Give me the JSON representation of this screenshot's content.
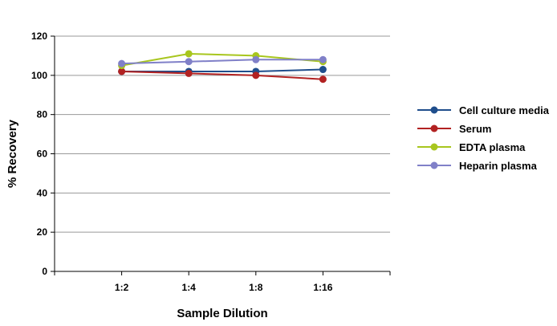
{
  "chart_data": {
    "type": "line",
    "title": "",
    "xlabel": "Sample Dilution",
    "ylabel": "% Recovery",
    "categories": [
      "1:2",
      "1:4",
      "1:8",
      "1:16"
    ],
    "ylim": [
      0,
      120
    ],
    "yticks": [
      0,
      20,
      40,
      60,
      80,
      100,
      120
    ],
    "grid": true,
    "legend_position": "right",
    "series": [
      {
        "name": "Cell culture media",
        "color": "#1f4e8c",
        "values": [
          102,
          102,
          102,
          103
        ]
      },
      {
        "name": "Serum",
        "color": "#b22222",
        "values": [
          102,
          101,
          100,
          98
        ]
      },
      {
        "name": "EDTA plasma",
        "color": "#a8c61e",
        "values": [
          105,
          111,
          110,
          107
        ]
      },
      {
        "name": "Heparin plasma",
        "color": "#8080c8",
        "values": [
          106,
          107,
          108,
          108
        ]
      }
    ]
  }
}
